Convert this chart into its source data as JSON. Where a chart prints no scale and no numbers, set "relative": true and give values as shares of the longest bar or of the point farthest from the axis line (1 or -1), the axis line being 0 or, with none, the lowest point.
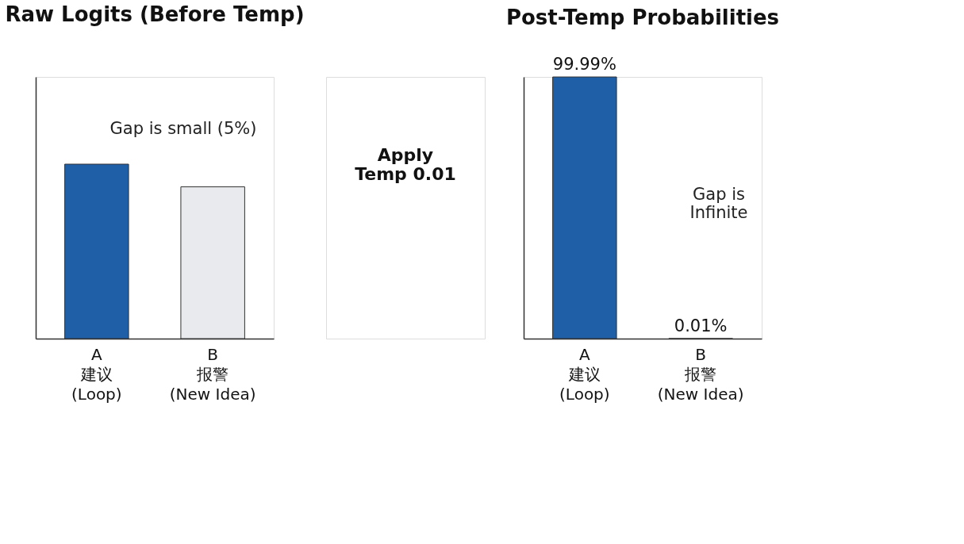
{
  "chart_data": [
    {
      "type": "bar",
      "title": "Raw Logits (Before Temp)",
      "categories": [
        "A\n建议\n(Loop)",
        "B\n报警\n(New Idea)"
      ],
      "values": [
        1,
        0.87
      ],
      "colors": [
        "#1f5fa8",
        "#e8eaed"
      ],
      "relative": true,
      "tick_labels": "x",
      "annotations": [
        "Gap is small (5%)"
      ]
    },
    {
      "type": "other",
      "annotations": [
        "Apply\nTemp 0.01"
      ]
    },
    {
      "type": "bar",
      "title": "Post-Temp Probabilities",
      "categories": [
        "A\n建议\n(Loop)",
        "B\n报警\n(New Idea)"
      ],
      "values": [
        99.99,
        0.01
      ],
      "colors": [
        "#1f5fa8",
        "#e8eaed"
      ],
      "value_labels": [
        "99.99%",
        "0.01%"
      ],
      "ylim": [
        0,
        100
      ],
      "tick_labels": "x",
      "annotations": [
        "Gap is\nInfinite"
      ]
    }
  ]
}
